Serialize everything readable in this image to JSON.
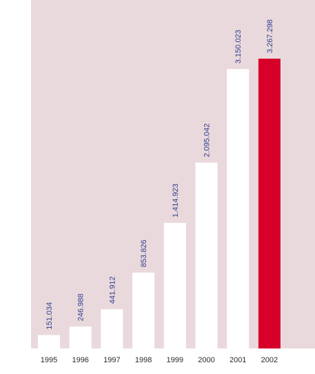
{
  "chart_data": {
    "type": "bar",
    "categories": [
      "1995",
      "1996",
      "1997",
      "1998",
      "1999",
      "2000",
      "2001",
      "2002"
    ],
    "values": [
      151034,
      246988,
      441912,
      853826,
      1414923,
      2095042,
      3150023,
      3267298
    ],
    "value_labels": [
      "151.034",
      "246.988",
      "441.912",
      "853.826",
      "1.414.923",
      "2.095.042",
      "3.150.023",
      "3.267.298"
    ],
    "ylim": [
      0,
      3267298
    ],
    "grid": false,
    "highlight_index": 7,
    "colors": {
      "background": "#ead9dc",
      "bar": "#ffffff",
      "highlight_bar": "#d7002a",
      "value_text": "#2f3f8f",
      "tick_text": "#2b2b2b"
    }
  }
}
